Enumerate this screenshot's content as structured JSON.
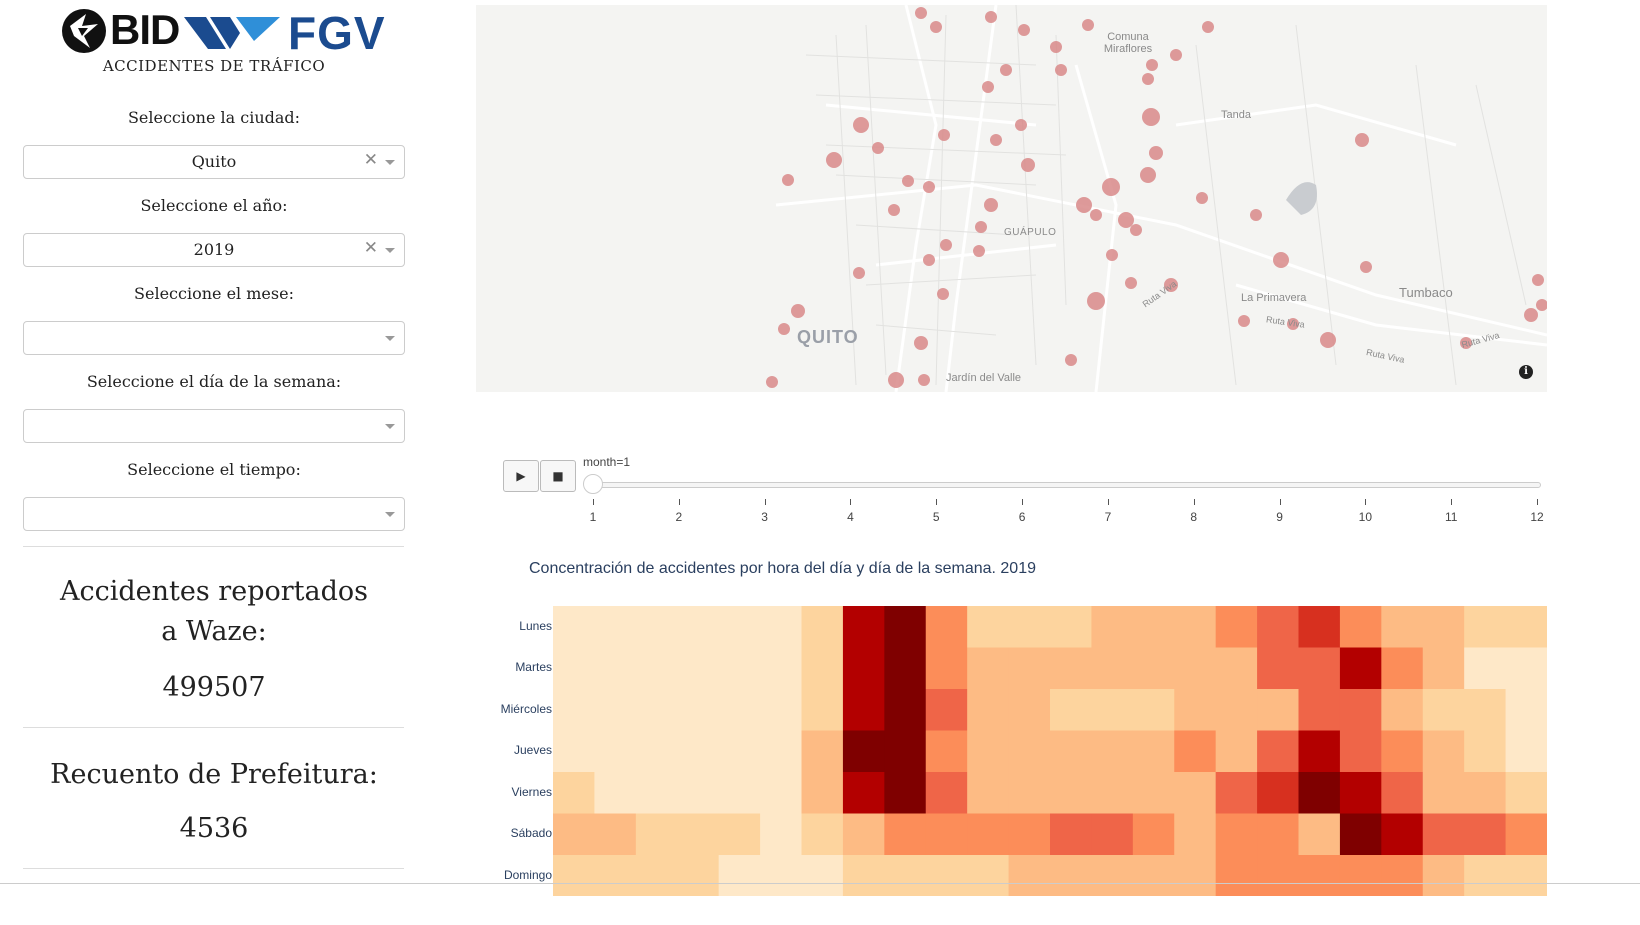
{
  "sidebar": {
    "logos": {
      "bid": "BID",
      "fgv": "FGV",
      "bid_icon": "bid-fox-icon",
      "fgv_icon": "fgv-chevron-icon"
    },
    "app_title": "ACCIDENTES DE TRÁFICO",
    "city": {
      "label": "Seleccione la ciudad:",
      "value": "Quito"
    },
    "year": {
      "label": "Seleccione el año:",
      "value": "2019"
    },
    "month": {
      "label": "Seleccione el mese:",
      "value": ""
    },
    "weekday": {
      "label": "Seleccione el día de la semana:",
      "value": ""
    },
    "time": {
      "label": "Seleccione el tiempo:",
      "value": ""
    },
    "stats": {
      "waze_title_line1": "Accidentes reportados",
      "waze_title_line2": "a Waze:",
      "waze_value": "499507",
      "pref_title": "Recuento de Prefeitura:",
      "pref_value": "4536"
    },
    "icons": {
      "clear": "close-icon",
      "caret": "chevron-down-icon"
    }
  },
  "map": {
    "labels": [
      "Comuna Miraflores",
      "Tanda",
      "GUÁPULO",
      "QUITO",
      "La Primavera",
      "Tumbaco",
      "Ruta Viva",
      "Ruta Viva",
      "Ruta Viva",
      "Ruta Viva",
      "Jardín del Valle"
    ],
    "accident_color": "#d98a8a",
    "info_icon": "i"
  },
  "animation": {
    "play_label": "▶",
    "stop_label": "■",
    "slider_label": "month=1",
    "ticks": [
      "1",
      "2",
      "3",
      "4",
      "5",
      "6",
      "7",
      "8",
      "9",
      "10",
      "11",
      "12"
    ],
    "current_month": 1
  },
  "chart_data": {
    "type": "heatmap",
    "title": "Concentración de accidentes por hora del día y día de la semana. 2019",
    "rows": [
      "Lunes",
      "Martes",
      "Miércoles",
      "Jueves",
      "Viernes",
      "Sábado",
      "Domingo"
    ],
    "columns": 24,
    "colorscale": [
      "#fff7ec",
      "#fee8c8",
      "#fdd49e",
      "#fdbb84",
      "#fc8d59",
      "#ef6548",
      "#d7301f",
      "#b30000",
      "#7f0000"
    ],
    "z": [
      [
        1,
        1,
        0.5,
        0.5,
        0.5,
        0.5,
        2,
        7,
        8,
        3.5,
        2,
        2,
        2,
        2.5,
        2.5,
        3,
        4,
        5,
        5.5,
        4,
        3,
        2.5,
        2,
        1.5
      ],
      [
        1,
        0.5,
        0.5,
        0.5,
        0.5,
        0.5,
        2,
        6.5,
        8.5,
        3.5,
        2.5,
        2.5,
        2.5,
        2.5,
        2.5,
        2.5,
        3,
        5,
        5,
        7,
        4,
        2.5,
        1,
        1
      ],
      [
        1,
        1,
        0.5,
        0.5,
        0.5,
        0.5,
        2,
        6.5,
        7.5,
        4.5,
        3,
        2.5,
        2,
        2,
        2,
        2.5,
        3,
        3,
        5,
        4.5,
        3,
        2,
        1.5,
        1
      ],
      [
        1,
        0.5,
        0.5,
        0.5,
        0.5,
        0.5,
        2.5,
        7.5,
        7.5,
        4,
        2.5,
        2.5,
        2.5,
        2.5,
        2.5,
        3.5,
        3,
        4.5,
        6.5,
        5,
        3.5,
        2.5,
        2,
        1
      ],
      [
        1.5,
        1,
        1,
        1,
        0.5,
        1,
        2.5,
        6.5,
        8,
        4.5,
        3,
        3,
        2.5,
        3,
        3,
        3,
        5,
        5.5,
        7.5,
        7,
        5,
        3,
        2.5,
        1.5
      ],
      [
        2.5,
        2.5,
        2,
        2,
        1.5,
        1,
        1.5,
        2.5,
        3.5,
        3.5,
        3.5,
        4,
        4.5,
        4.5,
        4,
        3,
        3.5,
        3.5,
        3,
        8,
        6.5,
        5,
        4.5,
        3.5
      ],
      [
        2,
        2,
        1.5,
        1.5,
        1,
        0.5,
        1,
        2,
        2,
        2,
        2,
        2.5,
        2.5,
        2.5,
        3,
        3,
        3.5,
        3.5,
        3.5,
        4,
        4,
        3,
        2,
        1.5
      ]
    ]
  }
}
